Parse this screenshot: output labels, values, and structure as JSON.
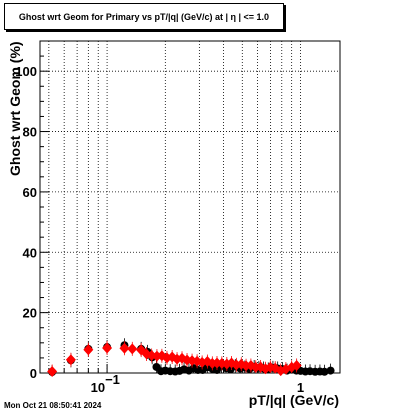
{
  "title": "Ghost wrt Geom for Primary vs pT/|q| (GeV/c) at |  η  | <= 1.0",
  "footer_timestamp": "Mon Oct 21 08:50:41 2024",
  "chart_data": {
    "type": "scatter",
    "title": "Ghost wrt Geom for Primary vs pT/|q| (GeV/c) at |  η  | <= 1.0",
    "xlabel": "pT/|q| (GeV/c)",
    "ylabel": "Ghost wrt Geom (%)",
    "x_scale": "log",
    "xlim": [
      0.045,
      1.6
    ],
    "ylim": [
      0,
      110
    ],
    "y_ticks": [
      0,
      20,
      40,
      60,
      80,
      100
    ],
    "y_tick_labels": [
      "0",
      "20",
      "40",
      "60",
      "80",
      "100"
    ],
    "x_tick_labels": [
      {
        "value": 0.1,
        "base": "10",
        "exp": "−1"
      },
      {
        "value": 1,
        "base": "1",
        "exp": ""
      }
    ],
    "grid": true,
    "series": [
      {
        "color": "#000000",
        "marker": "circle",
        "x": [
          0.052,
          0.065,
          0.08,
          0.1,
          0.123,
          0.15,
          0.162,
          0.171,
          0.18,
          0.19,
          0.2,
          0.212,
          0.225,
          0.237,
          0.25,
          0.265,
          0.28,
          0.295,
          0.312,
          0.33,
          0.35,
          0.37,
          0.39,
          0.412,
          0.435,
          0.46,
          0.487,
          0.515,
          0.545,
          0.576,
          0.609,
          0.644,
          0.681,
          0.72,
          0.762,
          0.806,
          0.852,
          0.9,
          0.952,
          1.0,
          1.06,
          1.12,
          1.19,
          1.26,
          1.33,
          1.43
        ],
        "y": [
          0.3,
          4.2,
          8.0,
          8.6,
          9.2,
          8.0,
          7.0,
          5.2,
          2.0,
          0.6,
          0.8,
          0.6,
          0.5,
          0.7,
          1.2,
          0.8,
          1.6,
          1.0,
          1.0,
          1.9,
          1.4,
          1.0,
          2.4,
          1.6,
          1.2,
          2.3,
          1.5,
          1.8,
          1.3,
          2.0,
          1.7,
          1.5,
          1.2,
          1.7,
          1.5,
          1.3,
          0.8,
          1.1,
          0.8,
          0.7,
          0.5,
          0.6,
          0.4,
          0.5,
          0.4,
          0.8
        ]
      },
      {
        "color": "#ff0000",
        "marker": "diamond",
        "x": [
          0.052,
          0.065,
          0.08,
          0.1,
          0.123,
          0.135,
          0.15,
          0.16,
          0.17,
          0.181,
          0.192,
          0.204,
          0.217,
          0.23,
          0.244,
          0.259,
          0.275,
          0.292,
          0.31,
          0.33,
          0.35,
          0.37,
          0.392,
          0.416,
          0.44,
          0.466,
          0.494,
          0.523,
          0.554,
          0.587,
          0.622,
          0.659,
          0.698,
          0.74,
          0.79,
          0.84,
          0.9,
          0.955
        ],
        "y": [
          0.5,
          4.4,
          7.7,
          8.3,
          8.2,
          8.0,
          7.6,
          6.3,
          5.8,
          5.6,
          5.7,
          5.0,
          5.3,
          4.6,
          4.9,
          4.3,
          4.1,
          3.9,
          3.5,
          3.8,
          3.2,
          3.3,
          3.2,
          3.0,
          3.3,
          2.7,
          2.9,
          2.4,
          2.5,
          1.9,
          2.0,
          1.4,
          1.9,
          1.6,
          0.8,
          1.3,
          1.9,
          2.5
        ]
      }
    ]
  }
}
